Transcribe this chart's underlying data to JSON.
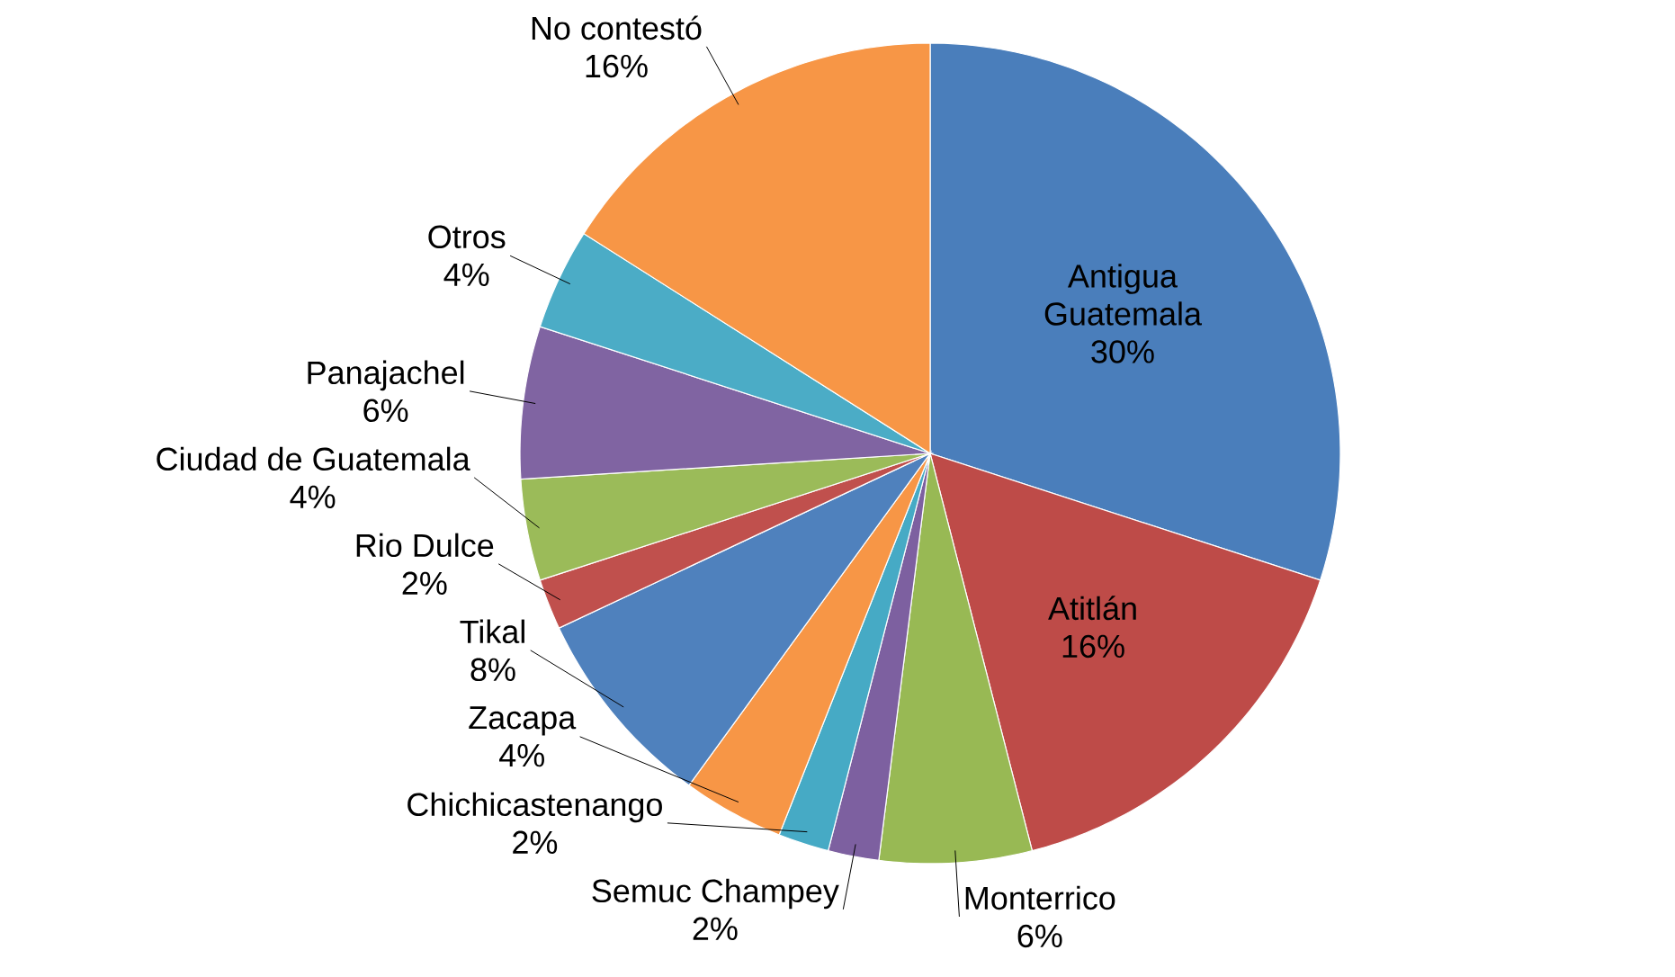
{
  "chart_data": {
    "type": "pie",
    "categories": [
      "Antigua Guatemala",
      "Atitlán",
      "Monterrico",
      "Semuc Champey",
      "Chichicastenango",
      "Zacapa",
      "Tikal",
      "Rio Dulce",
      "Ciudad de Guatemala",
      "Panajachel",
      "Otros",
      "No contestó"
    ],
    "values": [
      30,
      16,
      6,
      2,
      2,
      4,
      8,
      2,
      4,
      6,
      4,
      16
    ],
    "value_labels": [
      "30%",
      "16%",
      "6%",
      "2%",
      "2%",
      "4%",
      "8%",
      "2%",
      "4%",
      "6%",
      "4%",
      "16%"
    ],
    "colors": [
      "#4a7ebb",
      "#be4b48",
      "#98b954",
      "#7d60a0",
      "#46aac5",
      "#f79646",
      "#4f81bd",
      "#c0504d",
      "#9bbb59",
      "#8064a2",
      "#4bacc6",
      "#f79646"
    ]
  }
}
